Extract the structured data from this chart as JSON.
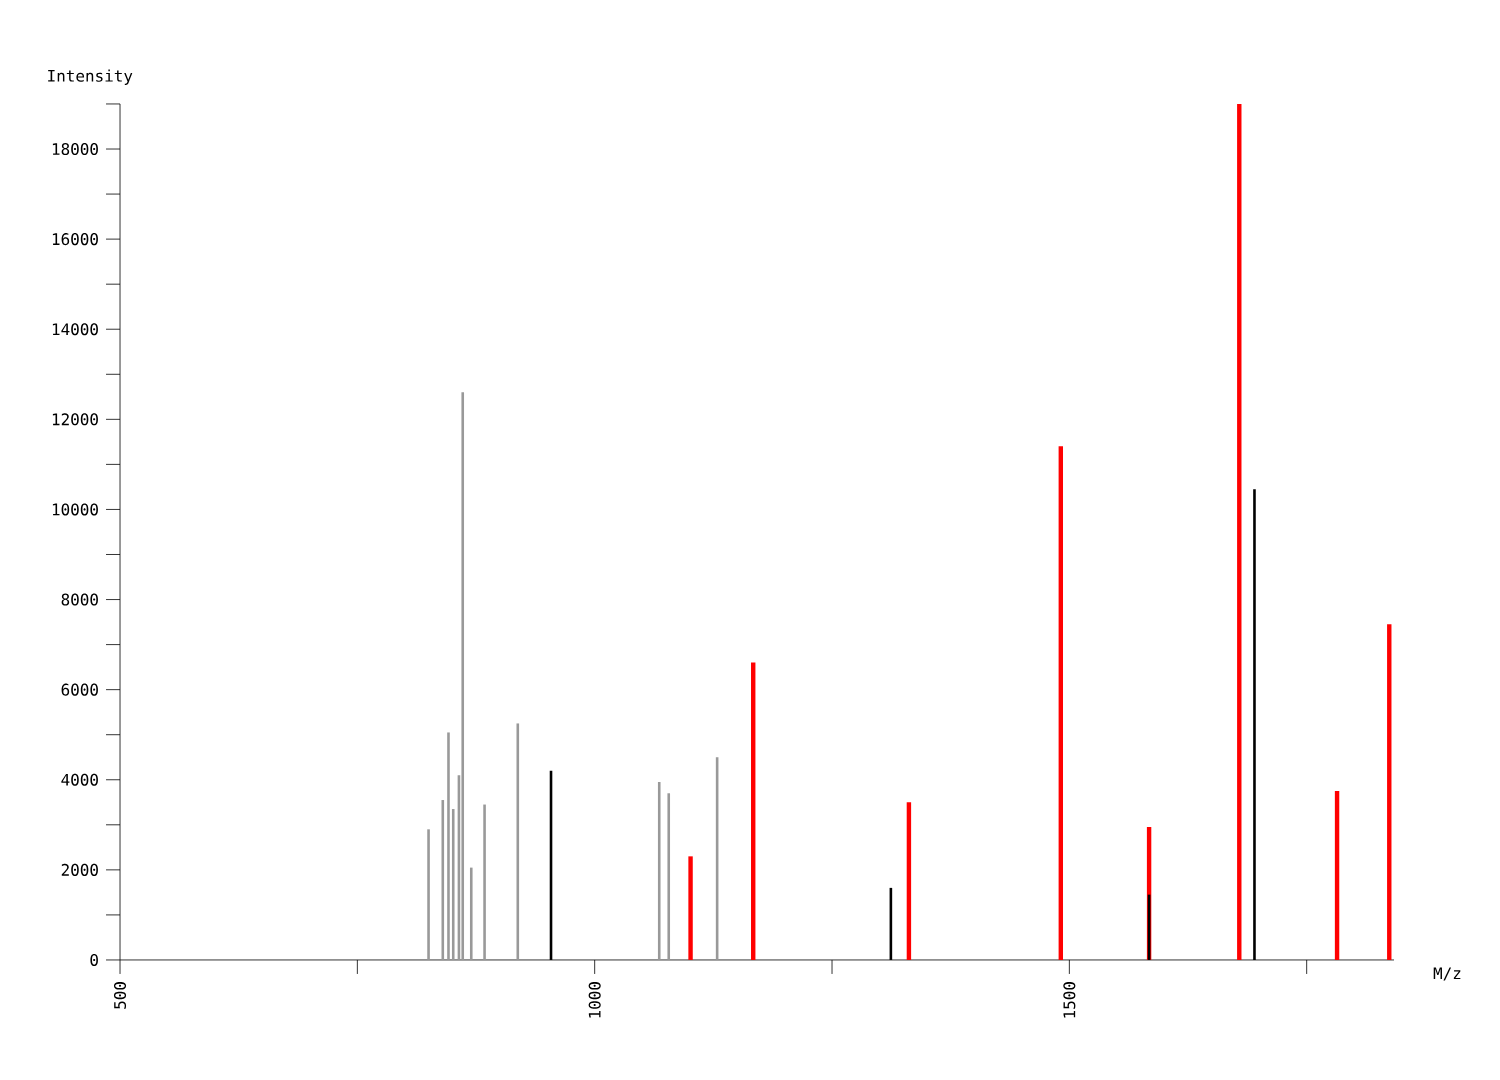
{
  "chart_data": {
    "type": "bar",
    "xlabel": "M/z",
    "ylabel": "Intensity",
    "xlim": [
      500,
      1842
    ],
    "ylim": [
      0,
      19000
    ],
    "xticks": [
      500,
      {
        "value": 750,
        "label": null
      },
      1000,
      {
        "value": 1250,
        "label": null
      },
      1500,
      {
        "value": 1750,
        "label": null
      }
    ],
    "yticks": [
      0,
      {
        "value": 1000,
        "label": null
      },
      2000,
      {
        "value": 3000,
        "label": null
      },
      4000,
      {
        "value": 5000,
        "label": null
      },
      6000,
      {
        "value": 7000,
        "label": null
      },
      8000,
      {
        "value": 9000,
        "label": null
      },
      10000,
      {
        "value": 11000,
        "label": null
      },
      12000,
      {
        "value": 13000,
        "label": null
      },
      14000,
      {
        "value": 15000,
        "label": null
      },
      16000,
      {
        "value": 17000,
        "label": null
      },
      18000,
      {
        "value": 19000,
        "label": null
      }
    ],
    "grid": false,
    "series": [
      {
        "color": "#999999",
        "x": [
          825,
          840,
          846,
          851,
          857,
          861,
          870,
          884,
          919,
          1068,
          1078,
          1129
        ],
        "values": [
          2900,
          3550,
          5050,
          3350,
          4100,
          12600,
          2050,
          3450,
          5250,
          3950,
          3700,
          4500
        ]
      },
      {
        "color": "#ff0000",
        "x": [
          1101,
          1167,
          1331,
          1491,
          1584,
          1679,
          1782,
          1837
        ],
        "values": [
          2300,
          6600,
          3500,
          11400,
          2950,
          19000,
          3750,
          7450
        ]
      },
      {
        "color": "#000000",
        "x": [
          954,
          1312,
          1584,
          1695
        ],
        "values": [
          4200,
          1600,
          1450,
          10450
        ]
      }
    ]
  }
}
